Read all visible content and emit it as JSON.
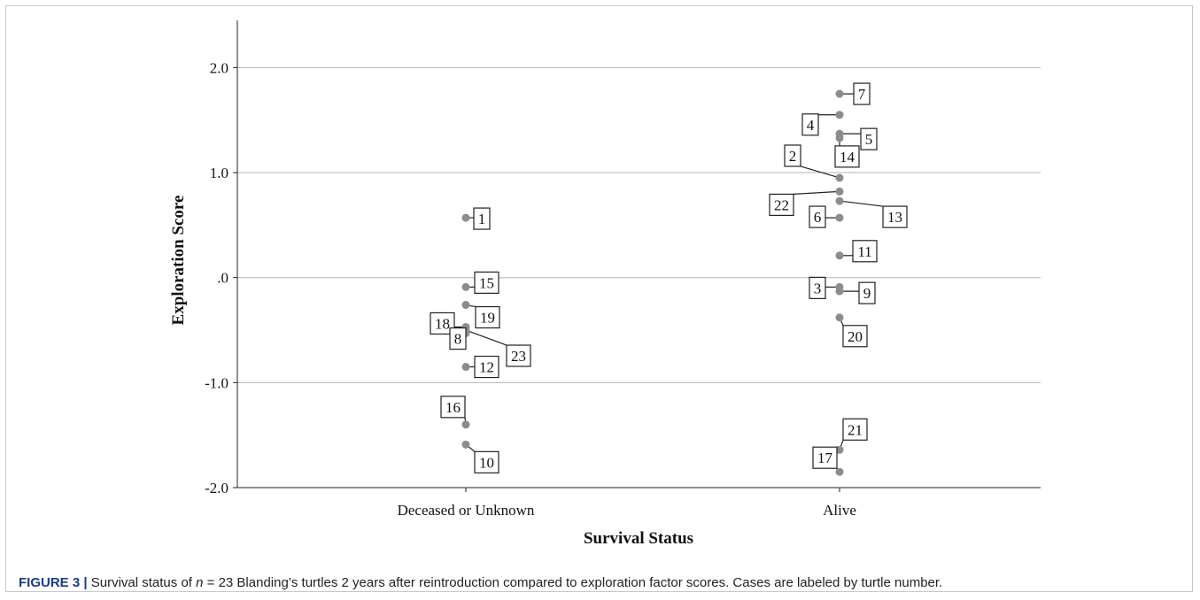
{
  "figure": {
    "label": "FIGURE 3",
    "separator": "|",
    "caption_before_n": "Survival status of ",
    "caption_n": "n",
    "caption_after_n": " = 23 Blanding’s turtles 2 years after reintroduction compared to exploration factor scores. Cases are labeled by turtle number."
  },
  "chart_data": {
    "type": "scatter",
    "xlabel": "Survival Status",
    "ylabel": "Exploration Score",
    "categories": [
      "Deceased or Unknown",
      "Alive"
    ],
    "ylim": [
      -2.0,
      2.45
    ],
    "yticks": [
      -2.0,
      -1.0,
      0.0,
      1.0,
      2.0
    ],
    "ytick_labels": [
      "-2.0",
      "-1.0",
      ".0",
      "1.0",
      "2.0"
    ],
    "grid": "horizontal",
    "point_color": "#8c8c8c",
    "points": [
      {
        "case": "1",
        "category": "Deceased or Unknown",
        "y": 0.57
      },
      {
        "case": "15",
        "category": "Deceased or Unknown",
        "y": -0.09
      },
      {
        "case": "19",
        "category": "Deceased or Unknown",
        "y": -0.26
      },
      {
        "case": "18",
        "category": "Deceased or Unknown",
        "y": -0.47
      },
      {
        "case": "23",
        "category": "Deceased or Unknown",
        "y": -0.5
      },
      {
        "case": "8",
        "category": "Deceased or Unknown",
        "y": -0.53
      },
      {
        "case": "12",
        "category": "Deceased or Unknown",
        "y": -0.85
      },
      {
        "case": "16",
        "category": "Deceased or Unknown",
        "y": -1.4
      },
      {
        "case": "10",
        "category": "Deceased or Unknown",
        "y": -1.59
      },
      {
        "case": "7",
        "category": "Alive",
        "y": 1.75
      },
      {
        "case": "4",
        "category": "Alive",
        "y": 1.55
      },
      {
        "case": "5",
        "category": "Alive",
        "y": 1.37
      },
      {
        "case": "14",
        "category": "Alive",
        "y": 1.33
      },
      {
        "case": "2",
        "category": "Alive",
        "y": 0.95
      },
      {
        "case": "22",
        "category": "Alive",
        "y": 0.82
      },
      {
        "case": "13",
        "category": "Alive",
        "y": 0.73
      },
      {
        "case": "6",
        "category": "Alive",
        "y": 0.57
      },
      {
        "case": "11",
        "category": "Alive",
        "y": 0.21
      },
      {
        "case": "3",
        "category": "Alive",
        "y": -0.09
      },
      {
        "case": "9",
        "category": "Alive",
        "y": -0.13
      },
      {
        "case": "20",
        "category": "Alive",
        "y": -0.38
      },
      {
        "case": "21",
        "category": "Alive",
        "y": -1.64
      },
      {
        "case": "17",
        "category": "Alive",
        "y": -1.85
      }
    ]
  }
}
